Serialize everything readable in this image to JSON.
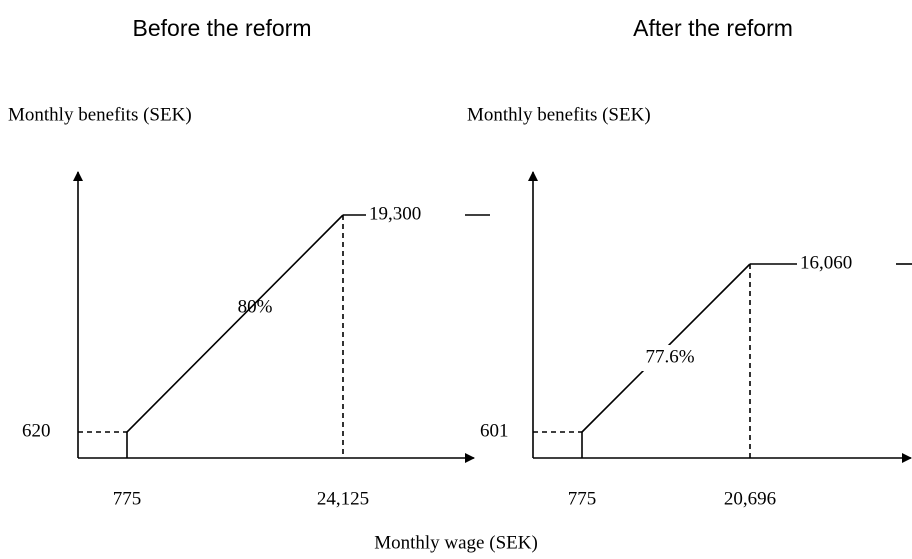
{
  "footer": "Monthly wage (SEK)",
  "panels": [
    {
      "title": "Before the reform",
      "y_label": "Monthly benefits (SEK)",
      "floor_label": "620",
      "rate_label": "80%",
      "cap_label": "19,300",
      "x_labels": [
        "775",
        "24,125"
      ]
    },
    {
      "title": "After the reform",
      "y_label": "Monthly benefits (SEK)",
      "floor_label": "601",
      "rate_label": "77.6%",
      "cap_label": "16,060",
      "x_labels": [
        "775",
        "20,696"
      ]
    }
  ]
}
